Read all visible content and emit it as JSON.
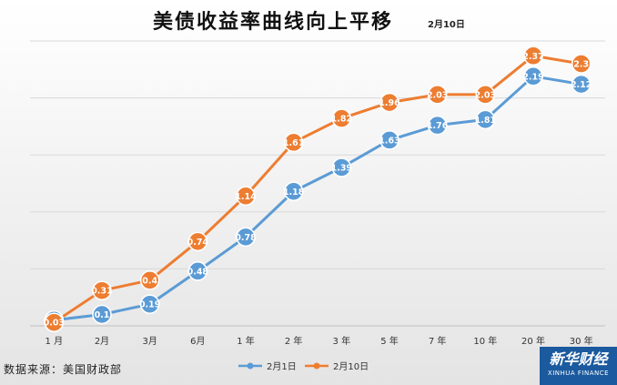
{
  "title": "美债收益率曲线向上平移",
  "subtitle": "2月10日",
  "source": "数据来源：美国财政部",
  "logo": {
    "cn": "新华财经",
    "en": "XINHUA FINANCE"
  },
  "colors": {
    "series1": "#5b9bd5",
    "series2": "#ed7d31",
    "grid": "#d9d9d9",
    "bg_top": "#ffffff",
    "bg_bottom": "#e4e4e4"
  },
  "chart_data": {
    "type": "line",
    "categories": [
      "1 月",
      "2月",
      "3月",
      "6月",
      "1 年",
      "2 年",
      "3 年",
      "5 年",
      "7 年",
      "10 年",
      "20 年",
      "30 年"
    ],
    "series": [
      {
        "name": "2月1日",
        "values": [
          0.05,
          0.1,
          0.19,
          0.48,
          0.78,
          1.18,
          1.39,
          1.63,
          1.76,
          1.81,
          2.19,
          2.12
        ],
        "labels": [
          "0.05",
          "0.1",
          "0.19",
          "0.48",
          "0.78",
          "1.18",
          "1.39",
          "1.63",
          "1.76",
          "1.81",
          "2.19",
          "2.12"
        ]
      },
      {
        "name": "2月10日",
        "values": [
          0.03,
          0.31,
          0.4,
          0.74,
          1.14,
          1.61,
          1.82,
          1.96,
          2.03,
          2.03,
          2.37,
          2.3
        ],
        "labels": [
          "0.03",
          "0.31",
          "0.4",
          "0.74",
          "1.14",
          "1.61",
          "1.82",
          "1.96",
          "2.03",
          "2.03",
          "2.37",
          "2.3"
        ]
      }
    ],
    "ylim": [
      0,
      2.5
    ],
    "grid": true,
    "legend": "bottom"
  }
}
